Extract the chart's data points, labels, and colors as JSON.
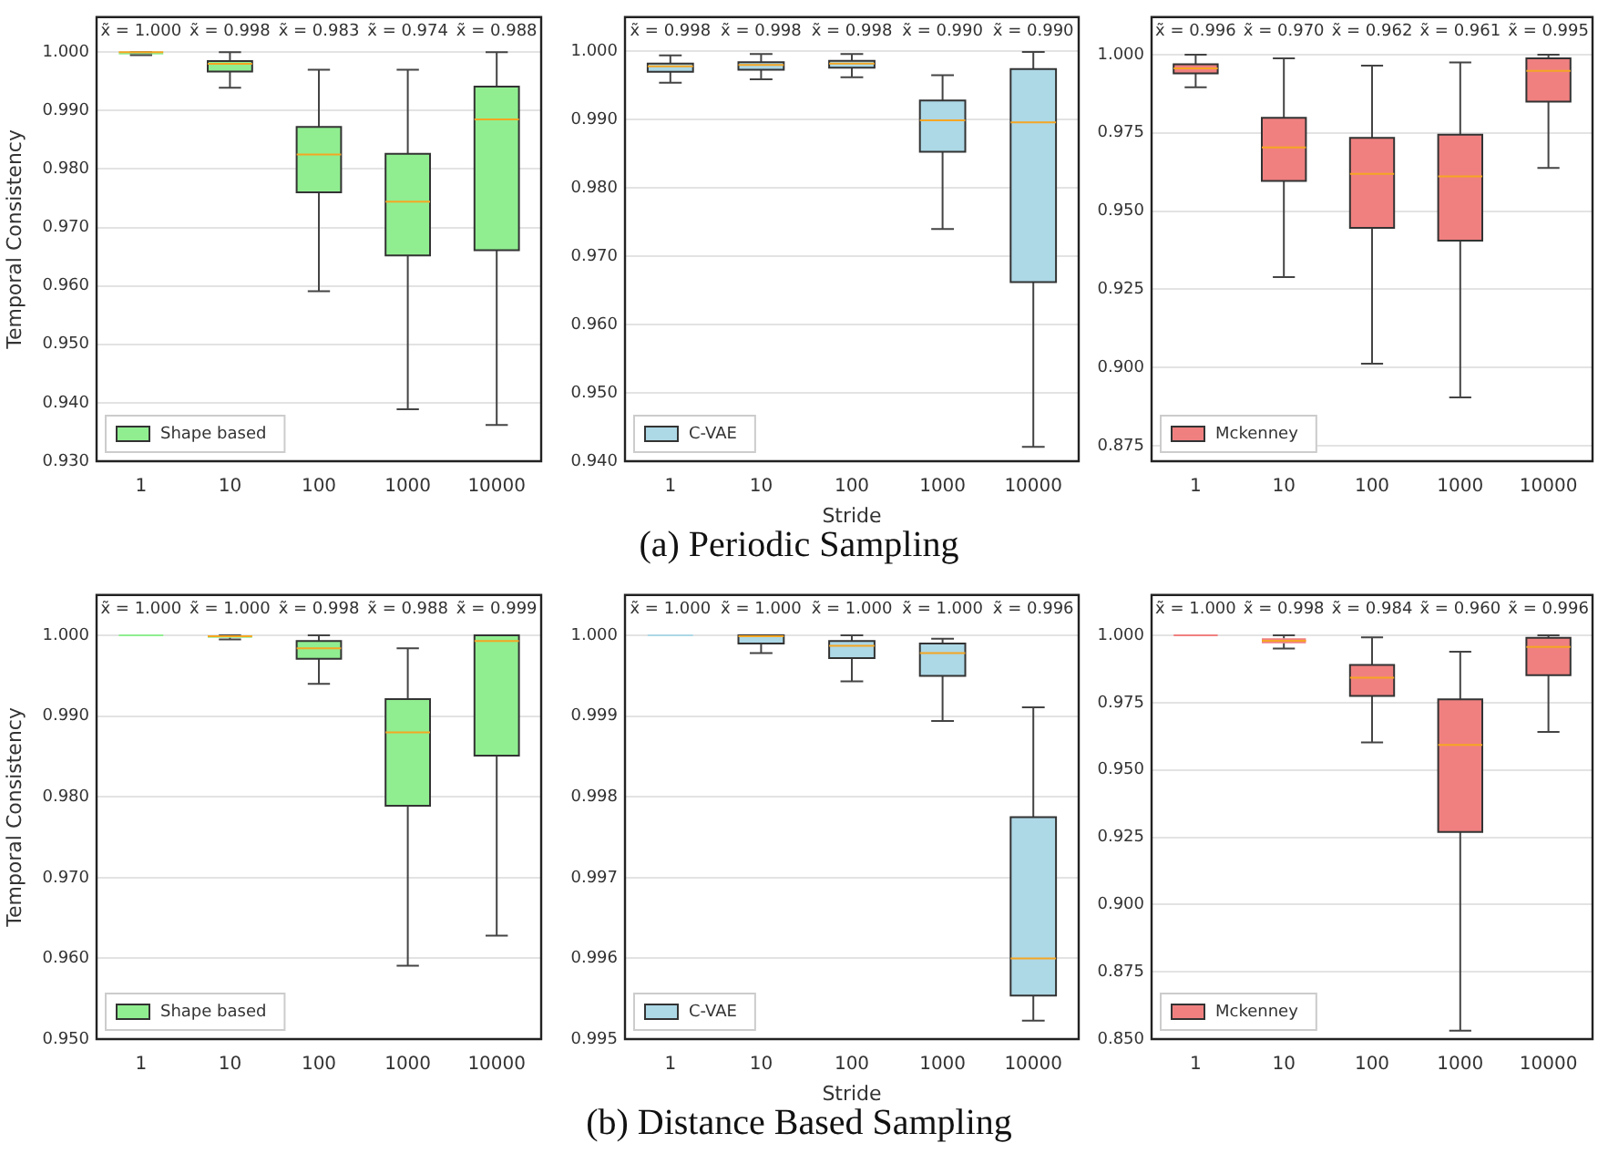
{
  "chart_data": [
    {
      "type": "box",
      "ylabel": "Temporal Consistency",
      "categories": [
        "1",
        "10",
        "100",
        "1000",
        "10000"
      ],
      "ylim": [
        0.93,
        1.006
      ],
      "yticks": [
        {
          "value": 0.93,
          "label": "0.930"
        },
        {
          "value": 0.94,
          "label": "0.940"
        },
        {
          "value": 0.95,
          "label": "0.950"
        },
        {
          "value": 0.96,
          "label": "0.960"
        },
        {
          "value": 0.97,
          "label": "0.970"
        },
        {
          "value": 0.98,
          "label": "0.980"
        },
        {
          "value": 0.99,
          "label": "0.990"
        },
        {
          "value": 1,
          "label": "1.000"
        }
      ],
      "grid": "y",
      "legend": "bottom left",
      "value_labels": [
        "x̃ = 1.000",
        "x̃ = 0.998",
        "x̃ = 0.983",
        "x̃ = 0.974",
        "x̃ = 0.988"
      ],
      "series": [
        {
          "name": "Shape based",
          "color": "#90ee90",
          "boxes": [
            {
              "low": 0.9995,
              "q1": 0.9996,
              "median": 1.0,
              "q3": 1.0,
              "high": 1.0
            },
            {
              "low": 0.9939,
              "q1": 0.9967,
              "median": 0.998,
              "q3": 0.9985,
              "high": 1.0
            },
            {
              "low": 0.9591,
              "q1": 0.976,
              "median": 0.9825,
              "q3": 0.9872,
              "high": 0.997
            },
            {
              "low": 0.9389,
              "q1": 0.9652,
              "median": 0.9744,
              "q3": 0.9826,
              "high": 0.997
            },
            {
              "low": 0.9362,
              "q1": 0.9661,
              "median": 0.9885,
              "q3": 0.9941,
              "high": 1.0
            }
          ]
        }
      ]
    },
    {
      "type": "box",
      "xlabel": "Stride",
      "categories": [
        "1",
        "10",
        "100",
        "1000",
        "10000"
      ],
      "ylim": [
        0.94,
        1.005
      ],
      "yticks": [
        {
          "value": 0.94,
          "label": "0.940"
        },
        {
          "value": 0.95,
          "label": "0.950"
        },
        {
          "value": 0.96,
          "label": "0.960"
        },
        {
          "value": 0.97,
          "label": "0.970"
        },
        {
          "value": 0.98,
          "label": "0.980"
        },
        {
          "value": 0.99,
          "label": "0.990"
        },
        {
          "value": 1,
          "label": "1.000"
        }
      ],
      "grid": "y",
      "legend": "bottom left",
      "annotations": [
        "(a) Periodic Sampling"
      ],
      "value_labels": [
        "x̃ = 0.998",
        "x̃ = 0.998",
        "x̃ = 0.998",
        "x̃ = 0.990",
        "x̃ = 0.990"
      ],
      "series": [
        {
          "name": "C-VAE",
          "color": "#add8e6",
          "boxes": [
            {
              "low": 0.9954,
              "q1": 0.997,
              "median": 0.9978,
              "q3": 0.9982,
              "high": 0.9994
            },
            {
              "low": 0.9959,
              "q1": 0.9973,
              "median": 0.998,
              "q3": 0.9984,
              "high": 0.9996
            },
            {
              "low": 0.9962,
              "q1": 0.9976,
              "median": 0.9982,
              "q3": 0.9986,
              "high": 0.9996
            },
            {
              "low": 0.974,
              "q1": 0.9853,
              "median": 0.9899,
              "q3": 0.9928,
              "high": 0.9965
            },
            {
              "low": 0.9421,
              "q1": 0.9662,
              "median": 0.9896,
              "q3": 0.9974,
              "high": 0.9999
            }
          ]
        }
      ]
    },
    {
      "type": "box",
      "categories": [
        "1",
        "10",
        "100",
        "1000",
        "10000"
      ],
      "ylim": [
        0.87,
        1.012
      ],
      "yticks": [
        {
          "value": 0.875,
          "label": "0.875"
        },
        {
          "value": 0.9,
          "label": "0.900"
        },
        {
          "value": 0.925,
          "label": "0.925"
        },
        {
          "value": 0.95,
          "label": "0.950"
        },
        {
          "value": 0.975,
          "label": "0.975"
        },
        {
          "value": 1,
          "label": "1.000"
        }
      ],
      "grid": "y",
      "legend": "bottom left",
      "value_labels": [
        "x̃ = 0.996",
        "x̃ = 0.970",
        "x̃ = 0.962",
        "x̃ = 0.961",
        "x̃ = 0.995"
      ],
      "series": [
        {
          "name": "Mckenney",
          "color": "#f08080",
          "boxes": [
            {
              "low": 0.9896,
              "q1": 0.994,
              "median": 0.9956,
              "q3": 0.9969,
              "high": 1.0
            },
            {
              "low": 0.9289,
              "q1": 0.9596,
              "median": 0.9703,
              "q3": 0.9798,
              "high": 0.9988
            },
            {
              "low": 0.9012,
              "q1": 0.9446,
              "median": 0.9619,
              "q3": 0.9734,
              "high": 0.9965
            },
            {
              "low": 0.8904,
              "q1": 0.9405,
              "median": 0.9611,
              "q3": 0.9744,
              "high": 0.9975
            },
            {
              "low": 0.9638,
              "q1": 0.985,
              "median": 0.9948,
              "q3": 0.9988,
              "high": 1.0
            }
          ]
        }
      ]
    },
    {
      "type": "box",
      "ylabel": "Temporal Consistency",
      "categories": [
        "1",
        "10",
        "100",
        "1000",
        "10000"
      ],
      "ylim": [
        0.95,
        1.005
      ],
      "yticks": [
        {
          "value": 0.95,
          "label": "0.950"
        },
        {
          "value": 0.96,
          "label": "0.960"
        },
        {
          "value": 0.97,
          "label": "0.970"
        },
        {
          "value": 0.98,
          "label": "0.980"
        },
        {
          "value": 0.99,
          "label": "0.990"
        },
        {
          "value": 1,
          "label": "1.000"
        }
      ],
      "grid": "y",
      "legend": "bottom left",
      "value_labels": [
        "x̃ = 1.000",
        "x̃ = 1.000",
        "x̃ = 0.998",
        "x̃ = 0.988",
        "x̃ = 0.999"
      ],
      "series": [
        {
          "name": "Shape based",
          "color": "#90ee90",
          "boxes": [
            {
              "low": 1.0,
              "q1": 1.0,
              "median": 1.0,
              "q3": 1.0,
              "high": 1.0
            },
            {
              "low": 0.9995,
              "q1": 0.9997,
              "median": 0.9999,
              "q3": 1.0,
              "high": 1.0
            },
            {
              "low": 0.994,
              "q1": 0.9971,
              "median": 0.9984,
              "q3": 0.9993,
              "high": 1.0
            },
            {
              "low": 0.9591,
              "q1": 0.9789,
              "median": 0.988,
              "q3": 0.9921,
              "high": 0.9984
            },
            {
              "low": 0.9628,
              "q1": 0.9851,
              "median": 0.9993,
              "q3": 1.0,
              "high": 1.0
            }
          ]
        }
      ]
    },
    {
      "type": "box",
      "xlabel": "Stride",
      "categories": [
        "1",
        "10",
        "100",
        "1000",
        "10000"
      ],
      "ylim": [
        0.995,
        1.0005
      ],
      "yticks": [
        {
          "value": 0.995,
          "label": "0.995"
        },
        {
          "value": 0.996,
          "label": "0.996"
        },
        {
          "value": 0.997,
          "label": "0.997"
        },
        {
          "value": 0.998,
          "label": "0.998"
        },
        {
          "value": 0.999,
          "label": "0.999"
        },
        {
          "value": 1,
          "label": "1.000"
        }
      ],
      "grid": "y",
      "legend": "bottom left",
      "annotations": [
        "(b) Distance Based Sampling"
      ],
      "value_labels": [
        "x̃ = 1.000",
        "x̃ = 1.000",
        "x̃ = 1.000",
        "x̃ = 1.000",
        "x̃ = 0.996"
      ],
      "series": [
        {
          "name": "C-VAE",
          "color": "#add8e6",
          "boxes": [
            {
              "low": 1.0,
              "q1": 1.0,
              "median": 1.0,
              "q3": 1.0,
              "high": 1.0
            },
            {
              "low": 0.99978,
              "q1": 0.9999,
              "median": 0.99999,
              "q3": 1.0,
              "high": 1.0
            },
            {
              "low": 0.99943,
              "q1": 0.99972,
              "median": 0.99987,
              "q3": 0.99993,
              "high": 1.0
            },
            {
              "low": 0.99894,
              "q1": 0.9995,
              "median": 0.99978,
              "q3": 0.9999,
              "high": 0.99996
            },
            {
              "low": 0.99523,
              "q1": 0.99554,
              "median": 0.996,
              "q3": 0.99775,
              "high": 0.99911
            }
          ]
        }
      ]
    },
    {
      "type": "box",
      "categories": [
        "1",
        "10",
        "100",
        "1000",
        "10000"
      ],
      "ylim": [
        0.85,
        1.015
      ],
      "yticks": [
        {
          "value": 0.85,
          "label": "0.850"
        },
        {
          "value": 0.875,
          "label": "0.875"
        },
        {
          "value": 0.9,
          "label": "0.900"
        },
        {
          "value": 0.925,
          "label": "0.925"
        },
        {
          "value": 0.95,
          "label": "0.950"
        },
        {
          "value": 0.975,
          "label": "0.975"
        },
        {
          "value": 1,
          "label": "1.000"
        }
      ],
      "grid": "y",
      "legend": "bottom left",
      "value_labels": [
        "x̃ = 1.000",
        "x̃ = 0.998",
        "x̃ = 0.984",
        "x̃ = 0.960",
        "x̃ = 0.996"
      ],
      "series": [
        {
          "name": "Mckenney",
          "color": "#f08080",
          "boxes": [
            {
              "low": 1.0,
              "q1": 1.0,
              "median": 1.0,
              "q3": 1.0,
              "high": 1.0
            },
            {
              "low": 0.9951,
              "q1": 0.9971,
              "median": 0.998,
              "q3": 0.9989,
              "high": 1.0
            },
            {
              "low": 0.9602,
              "q1": 0.9775,
              "median": 0.9843,
              "q3": 0.989,
              "high": 0.9993
            },
            {
              "low": 0.8531,
              "q1": 0.927,
              "median": 0.9593,
              "q3": 0.9762,
              "high": 0.9939
            },
            {
              "low": 0.9641,
              "q1": 0.9852,
              "median": 0.9957,
              "q3": 0.9991,
              "high": 1.0
            }
          ]
        }
      ]
    }
  ]
}
